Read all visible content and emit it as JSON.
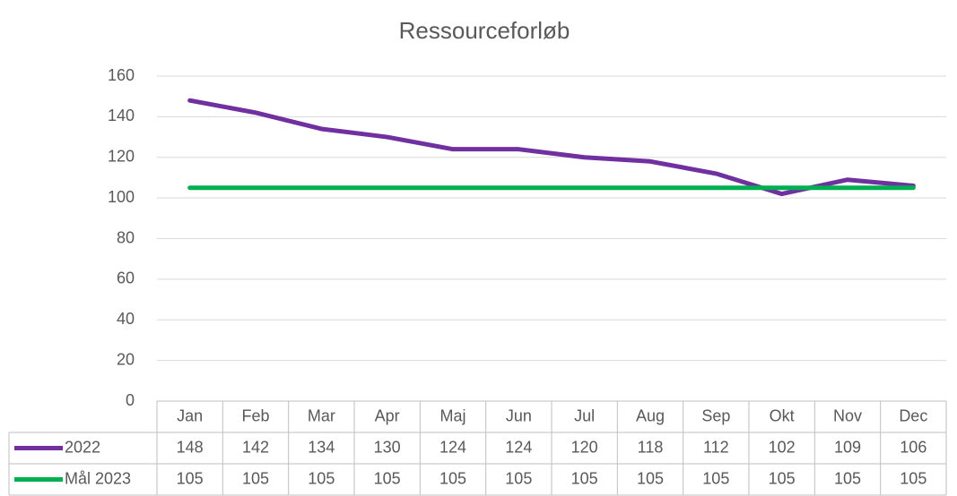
{
  "chart_data": {
    "type": "line",
    "title": "Ressourceforløb",
    "categories": [
      "Jan",
      "Feb",
      "Mar",
      "Apr",
      "Maj",
      "Jun",
      "Jul",
      "Aug",
      "Sep",
      "Okt",
      "Nov",
      "Dec"
    ],
    "series": [
      {
        "name": "2022",
        "color": "#7030a0",
        "values": [
          148,
          142,
          134,
          130,
          124,
          124,
          120,
          118,
          112,
          102,
          109,
          106
        ]
      },
      {
        "name": "Mål 2023",
        "color": "#00b050",
        "values": [
          105,
          105,
          105,
          105,
          105,
          105,
          105,
          105,
          105,
          105,
          105,
          105
        ]
      }
    ],
    "ylim": [
      0,
      160
    ],
    "yticks": [
      0,
      20,
      40,
      60,
      80,
      100,
      120,
      140,
      160
    ],
    "grid": true,
    "data_table": true
  }
}
